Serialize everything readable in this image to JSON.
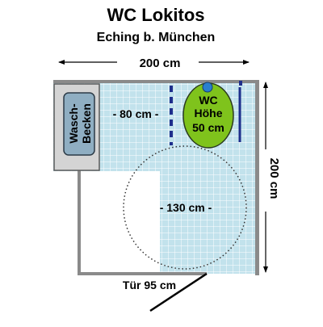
{
  "header": {
    "title": "WC Lokitos",
    "subtitle": "Eching b. München"
  },
  "dimensions": {
    "width_label": "200 cm",
    "depth_label": "200 cm",
    "side_clearance_label": "- 80 cm -",
    "turning_circle_label": "- 130 cm -",
    "door_label": "Tür 95 cm"
  },
  "fixtures": {
    "sink_line1": "Wasch-",
    "sink_line2": "Becken",
    "wc_line1": "WC",
    "wc_line2": "Höhe",
    "wc_line3": "50 cm"
  },
  "colors": {
    "floor_tile": "#c2e2ec",
    "tile_grout": "#ffffff",
    "wall": "#8a8a8a",
    "sink_counter": "#d4d4d4",
    "sink_basin": "#8faec2",
    "wc_fill": "#7fc31c",
    "wc_lid_dot": "#2a7fcf",
    "grab_bar": "#1e2e8c"
  }
}
